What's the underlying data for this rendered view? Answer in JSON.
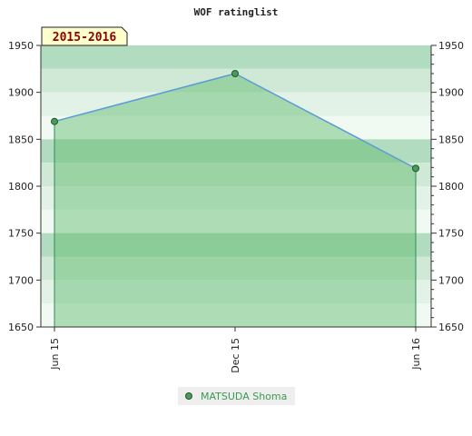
{
  "chart_data": {
    "type": "area",
    "title": "WOF ratinglist",
    "season_label": "2015-2016",
    "x": [
      "Jun 15",
      "Dec 15",
      "Jun 16"
    ],
    "series": [
      {
        "name": "MATSUDA Shoma",
        "values": [
          1869,
          1920,
          1819
        ]
      }
    ],
    "ylim": [
      1650,
      1950
    ],
    "yticks": [
      1650,
      1700,
      1750,
      1800,
      1850,
      1900,
      1950
    ],
    "y_axis_both_sides": true,
    "grid": true,
    "legend_position": "bottom-center",
    "colors": {
      "line": "#5b9bd5",
      "fill": "#5cb86a",
      "marker": "#4c9a57",
      "drop_line": "#2e8b57",
      "legend_text": "#3a9a52",
      "season_text": "#8b0000",
      "season_bg": "#ffffcc"
    }
  }
}
